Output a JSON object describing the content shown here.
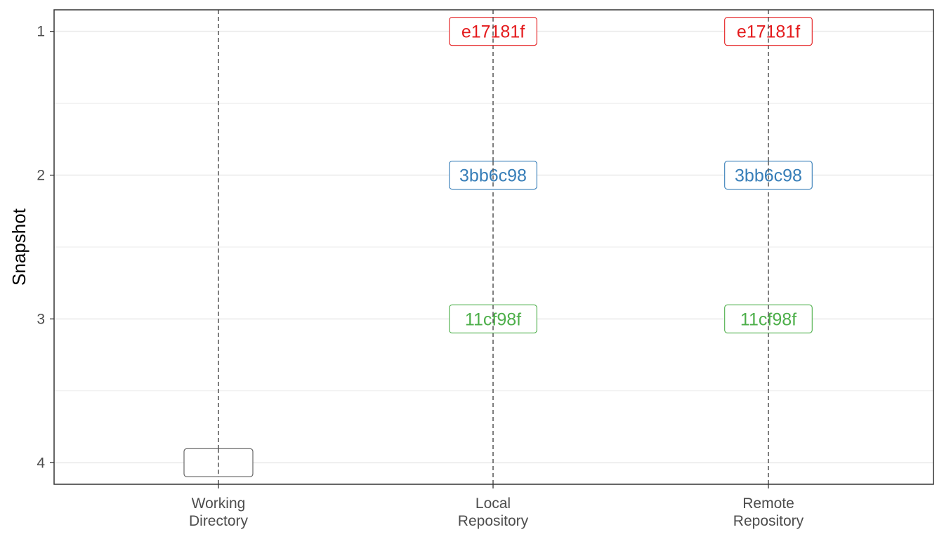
{
  "chart_data": {
    "type": "scatter",
    "title": "",
    "xlabel": "",
    "ylabel": "Snapshot",
    "x_categories": [
      [
        "Working",
        "Directory"
      ],
      [
        "Local",
        "Repository"
      ],
      [
        "Remote",
        "Repository"
      ]
    ],
    "y_ticks": [
      "1",
      "2",
      "3",
      "4"
    ],
    "ylim": [
      4.15,
      0.85
    ],
    "y_reversed": true,
    "grid": true,
    "series": [
      {
        "label": "e17181f",
        "color": "#e41a1c",
        "points": [
          {
            "x": 1,
            "y": 1
          },
          {
            "x": 2,
            "y": 1
          }
        ]
      },
      {
        "label": "3bb6c98",
        "color": "#377eb8",
        "points": [
          {
            "x": 1,
            "y": 2
          },
          {
            "x": 2,
            "y": 2
          }
        ]
      },
      {
        "label": "11cf98f",
        "color": "#4daf4a",
        "points": [
          {
            "x": 1,
            "y": 3
          },
          {
            "x": 2,
            "y": 3
          }
        ]
      },
      {
        "label": "",
        "color": "#595959",
        "points": [
          {
            "x": 0,
            "y": 4
          }
        ]
      }
    ]
  }
}
